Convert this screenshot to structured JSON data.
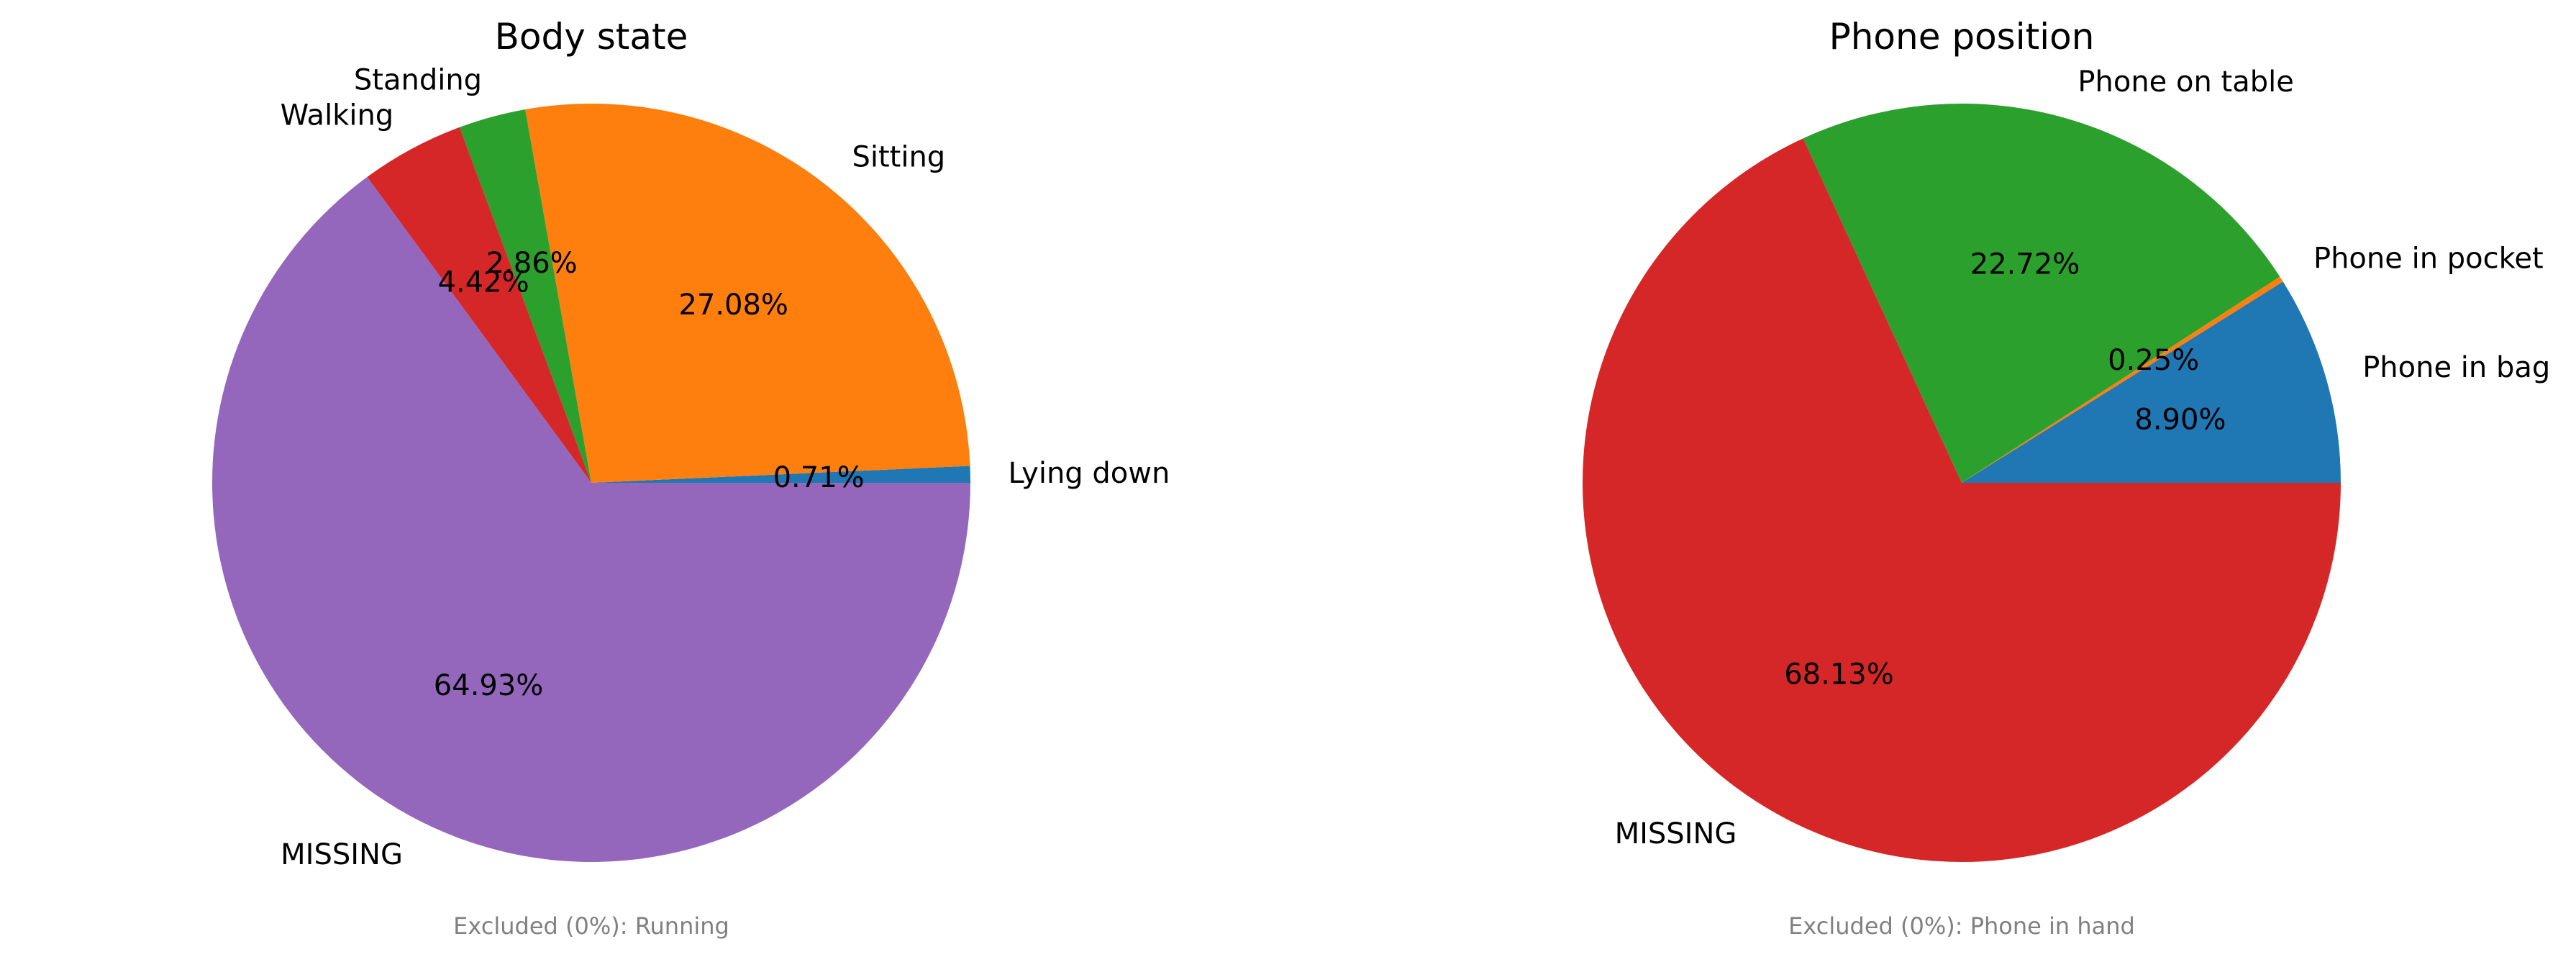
{
  "chart_data": [
    {
      "type": "pie",
      "title": "Body state",
      "start_angle_deg": 0,
      "direction": "counterclockwise",
      "slices": [
        {
          "label": "Lying down",
          "value": 0.71,
          "pct_label": "0.71%",
          "color": "#1f77b4"
        },
        {
          "label": "Sitting",
          "value": 27.08,
          "pct_label": "27.08%",
          "color": "#ff7f0e"
        },
        {
          "label": "Standing",
          "value": 2.86,
          "pct_label": "2.86%",
          "color": "#2ca02c"
        },
        {
          "label": "Walking",
          "value": 4.42,
          "pct_label": "4.42%",
          "color": "#d62728"
        },
        {
          "label": "MISSING",
          "value": 64.93,
          "pct_label": "64.93%",
          "color": "#9467bd"
        }
      ],
      "footnote": "Excluded (0%): Running"
    },
    {
      "type": "pie",
      "title": "Phone position",
      "start_angle_deg": 0,
      "direction": "counterclockwise",
      "slices": [
        {
          "label": "Phone in bag",
          "value": 8.9,
          "pct_label": "8.90%",
          "color": "#1f77b4"
        },
        {
          "label": "Phone in pocket",
          "value": 0.25,
          "pct_label": "0.25%",
          "color": "#ff7f0e"
        },
        {
          "label": "Phone on table",
          "value": 22.72,
          "pct_label": "22.72%",
          "color": "#2ca02c"
        },
        {
          "label": "MISSING",
          "value": 68.13,
          "pct_label": "68.13%",
          "color": "#d62728"
        }
      ],
      "footnote": "Excluded (0%): Phone in hand"
    }
  ]
}
